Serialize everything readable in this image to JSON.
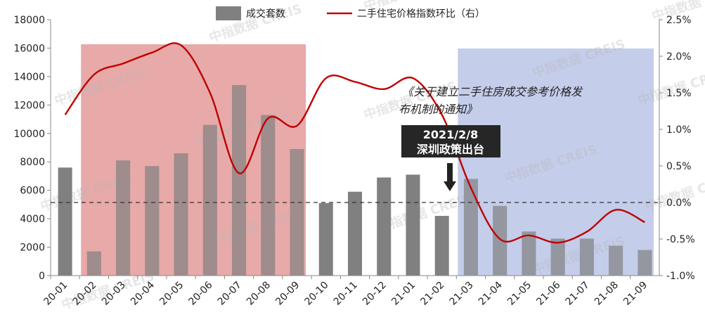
{
  "chart_data": {
    "type": "bar",
    "categories": [
      "20-01",
      "20-02",
      "20-03",
      "20-04",
      "20-05",
      "20-06",
      "20-07",
      "20-08",
      "20-09",
      "20-10",
      "20-11",
      "20-12",
      "21-01",
      "21-02",
      "21-03",
      "21-04",
      "21-05",
      "21-06",
      "21-07",
      "21-08",
      "21-09"
    ],
    "series": [
      {
        "name": "成交套数",
        "type": "bar",
        "axis": "left",
        "color": "#808080",
        "values": [
          7600,
          1700,
          8100,
          7700,
          8600,
          10600,
          13400,
          11300,
          8900,
          5100,
          5900,
          6900,
          7100,
          4200,
          6800,
          4900,
          3100,
          2600,
          2600,
          2100,
          1800
        ]
      },
      {
        "name": "二手住宅价格指数环比（右）",
        "type": "line",
        "axis": "right",
        "color": "#c00000",
        "values": [
          1.2,
          1.75,
          1.9,
          2.05,
          2.15,
          1.5,
          0.4,
          1.15,
          1.05,
          1.7,
          1.65,
          1.55,
          1.7,
          1.2,
          0.2,
          -0.5,
          -0.45,
          -0.55,
          -0.4,
          -0.1,
          -0.27
        ]
      }
    ],
    "y_left": {
      "ylim": [
        0,
        18000
      ],
      "ticks": [
        "0",
        "2000",
        "4000",
        "6000",
        "8000",
        "10000",
        "12000",
        "14000",
        "16000",
        "18000"
      ]
    },
    "y_right": {
      "ylim": [
        -1.0,
        2.5
      ],
      "ticks": [
        "-1.0%",
        "-0.5%",
        "0.0%",
        "0.5%",
        "1.0%",
        "1.5%",
        "2.0%",
        "2.5%"
      ]
    },
    "zero_reference_line": 0.0,
    "highlight_regions": [
      {
        "from": "20-02",
        "to": "20-09",
        "color": "#e8a9a9"
      },
      {
        "from": "21-03",
        "to": "21-09",
        "color": "#c4cdea"
      }
    ],
    "annotations": {
      "policy_text": "《关于建立二手住房成交参考价格发布机制的通知》",
      "callout_date": "2021/2/8",
      "callout_event": "深圳政策出台"
    },
    "legend_position": "top-center",
    "title": "",
    "xlabel": "",
    "ylabel": ""
  },
  "watermark": [
    "中指数据",
    "CREIS"
  ]
}
